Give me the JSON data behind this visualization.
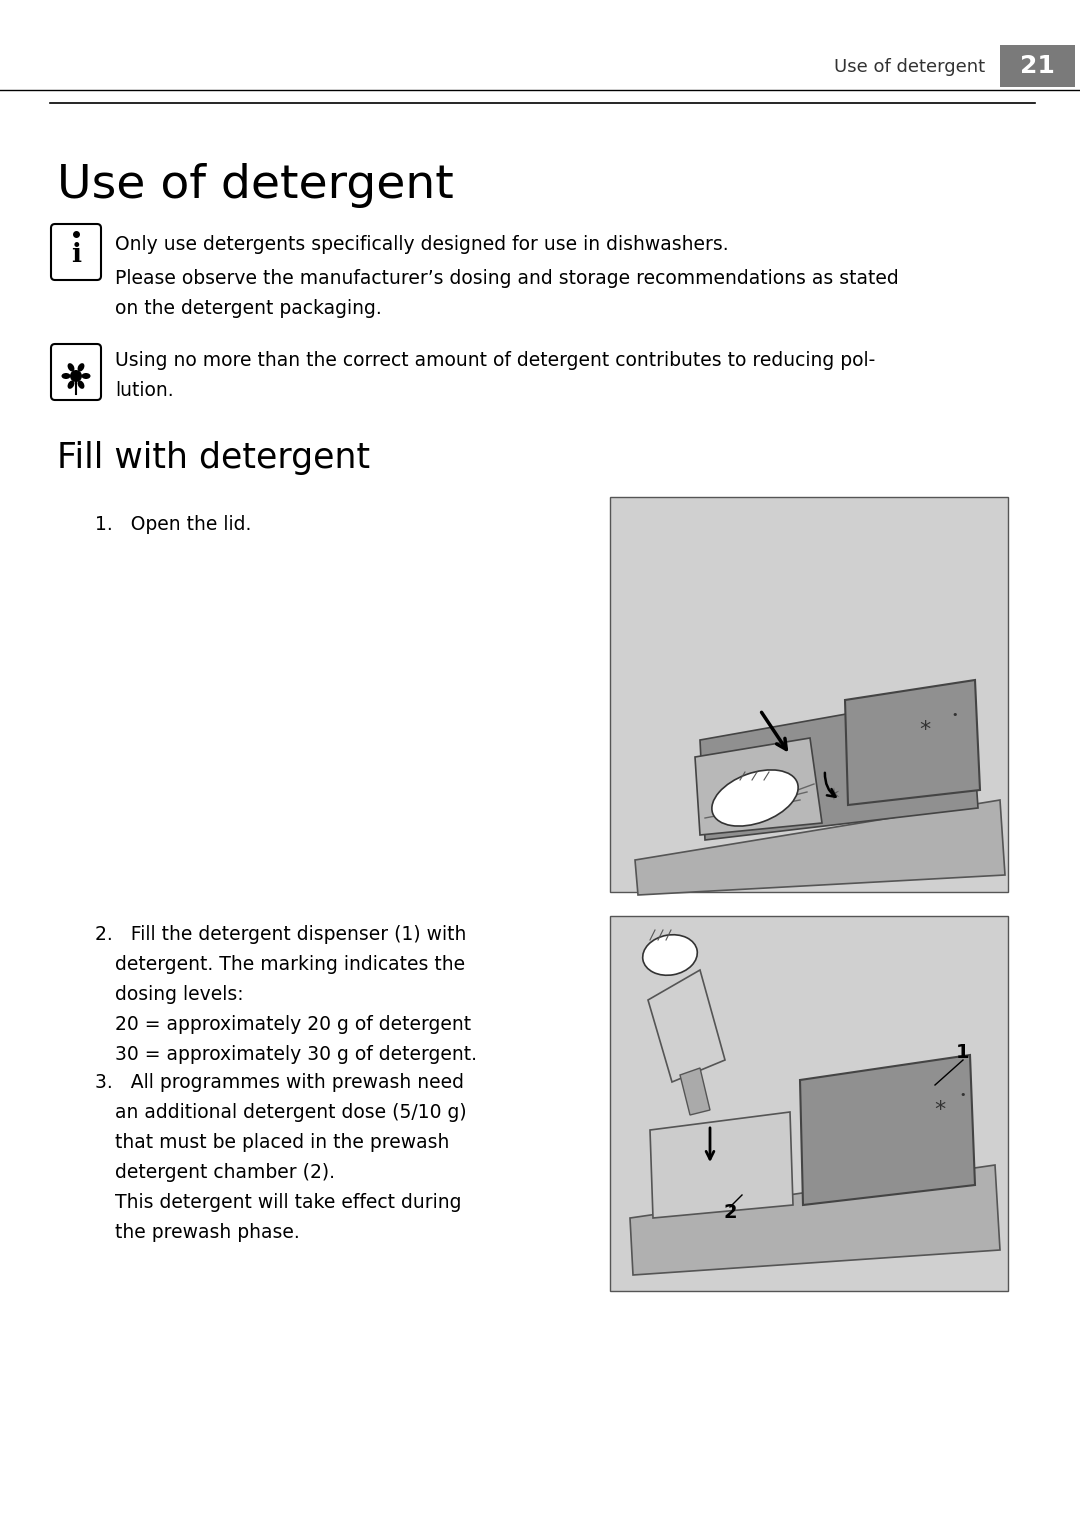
{
  "page_number": "21",
  "header_label": "Use of detergent",
  "main_title": "Use of detergent",
  "section_title": "Fill with detergent",
  "bg_color": "#ffffff",
  "header_bg": "#7a7a7a",
  "info_note1_line1": "Only use detergents specifically designed for use in dishwashers.",
  "info_note1_line2": "Please observe the manufacturer’s dosing and storage recommendations as stated",
  "info_note1_line3": "on the detergent packaging.",
  "eco_note_line1": "Using no more than the correct amount of detergent contributes to reducing pol-",
  "eco_note_line2": "lution.",
  "step1": "1.   Open the lid.",
  "step2_lines": [
    "2.   Fill the detergent dispenser (1) with",
    "detergent. The marking indicates the",
    "dosing levels:",
    "20 = approximately 20 g of detergent",
    "30 = approximately 30 g of detergent."
  ],
  "step3_lines": [
    "3.   All programmes with prewash need",
    "an additional detergent dose (5/10 g)",
    "that must be placed in the prewash",
    "detergent chamber (2).",
    "This detergent will take effect during",
    "the prewash phase."
  ],
  "img1_bg": "#d0d0d0",
  "img2_bg": "#d0d0d0",
  "line_color": "#000000",
  "text_color": "#000000",
  "body_fontsize": 13.5,
  "title_fontsize": 34,
  "section_fontsize": 25,
  "header_fontsize": 13,
  "page_num_fontsize": 18
}
